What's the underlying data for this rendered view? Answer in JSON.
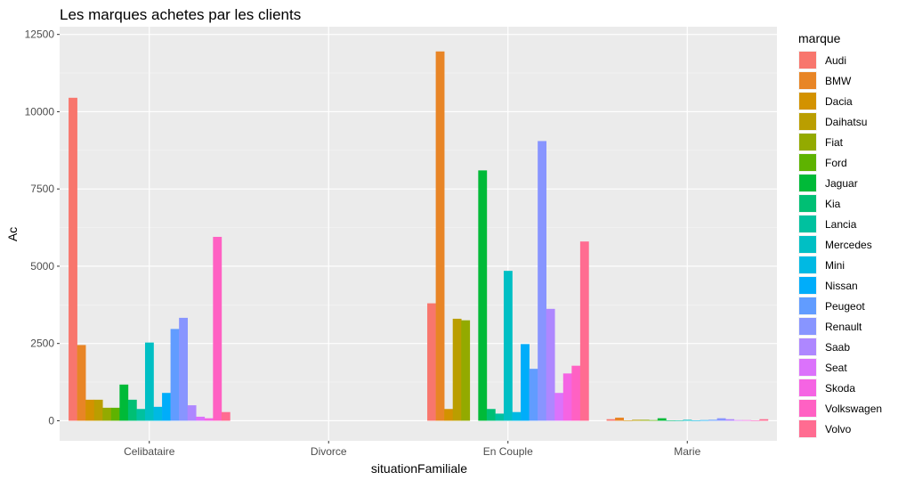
{
  "chart_data": {
    "type": "bar",
    "title": "Les marques achetes par les clients",
    "xlabel": "situationFamiliale",
    "ylabel": "Ac",
    "categories": [
      "Celibataire",
      "Divorce",
      "En Couple",
      "Marie"
    ],
    "ylim": [
      -650,
      12750
    ],
    "yticks": [
      0,
      2500,
      5000,
      7500,
      10000,
      12500
    ],
    "grid": true,
    "legend": {
      "title": "marque",
      "position": "right"
    },
    "series": [
      {
        "name": "Audi",
        "color": "#F8766D",
        "values": [
          10450,
          0,
          3800,
          50
        ]
      },
      {
        "name": "BMW",
        "color": "#E7861B",
        "values": [
          2450,
          0,
          11950,
          100
        ]
      },
      {
        "name": "Dacia",
        "color": "#D89000",
        "values": [
          680,
          0,
          380,
          10
        ]
      },
      {
        "name": "Daihatsu",
        "color": "#C09B00",
        "values": [
          680,
          0,
          3300,
          30
        ]
      },
      {
        "name": "Fiat",
        "color": "#A3A500",
        "values": [
          420,
          0,
          3250,
          30
        ]
      },
      {
        "name": "Ford",
        "color": "#7CAE00",
        "values": [
          420,
          0,
          0,
          20
        ]
      },
      {
        "name": "Jaguar",
        "color": "#39B600",
        "values": [
          1170,
          0,
          8100,
          80
        ]
      },
      {
        "name": "Kia",
        "color": "#00BB4E",
        "values": [
          680,
          0,
          380,
          10
        ]
      },
      {
        "name": "Lancia",
        "color": "#00BF7D",
        "values": [
          380,
          0,
          230,
          5
        ]
      },
      {
        "name": "Mercedes",
        "color": "#00C1A3",
        "values": [
          2530,
          0,
          4850,
          30
        ]
      },
      {
        "name": "Mini",
        "color": "#00BFC4",
        "values": [
          450,
          0,
          280,
          10
        ]
      },
      {
        "name": "Nissan",
        "color": "#00BAE0",
        "values": [
          900,
          0,
          2480,
          20
        ]
      },
      {
        "name": "Peugeot",
        "color": "#00B0F6",
        "values": [
          2970,
          0,
          1680,
          30
        ]
      },
      {
        "name": "Renault",
        "color": "#35A2FF",
        "values": [
          3330,
          0,
          9050,
          80
        ]
      },
      {
        "name": "Saab",
        "color": "#9590FF",
        "values": [
          500,
          0,
          3620,
          50
        ]
      },
      {
        "name": "Seat",
        "color": "#C77CFF",
        "values": [
          130,
          0,
          900,
          20
        ]
      },
      {
        "name": "Skoda",
        "color": "#E76BF3",
        "values": [
          80,
          0,
          1530,
          20
        ]
      },
      {
        "name": "Volkswagen",
        "color": "#FA62DB",
        "values": [
          5950,
          0,
          1780,
          10
        ]
      },
      {
        "name": "Volvo",
        "color": "#FF62BC",
        "values": [
          280,
          0,
          5800,
          50
        ]
      }
    ],
    "series_visual_colors": [
      "#F8766D",
      "#E88526",
      "#D39200",
      "#BA9E00",
      "#93AA00",
      "#5EB300",
      "#00BA38",
      "#00BF74",
      "#00C19F",
      "#00BFC4",
      "#00B9E3",
      "#00ADFA",
      "#619CFF",
      "#8895FF",
      "#AE87FF",
      "#DB72FB",
      "#F564E3",
      "#FF61C3",
      "#FF6C91"
    ]
  }
}
